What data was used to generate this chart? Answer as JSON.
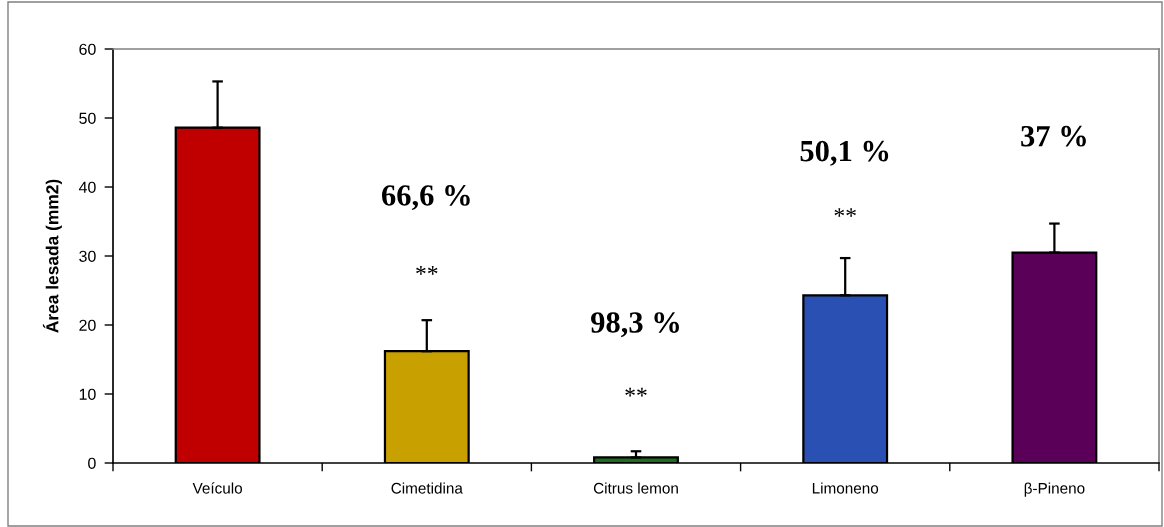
{
  "chart_data": {
    "type": "bar",
    "ylabel": "Área lesada (mm2)",
    "categories": [
      "Veículo",
      "Cimetidina",
      "Citrus lemon",
      "Limoneno",
      "β-Pineno"
    ],
    "values": [
      48.6,
      16.2,
      0.8,
      24.3,
      30.5
    ],
    "colors": [
      "#c00000",
      "#c8a000",
      "#1e6e1e",
      "#2a50b4",
      "#5a0058"
    ],
    "errors": [
      [
        48.6,
        55.3
      ],
      [
        16.2,
        20.7
      ],
      [
        0.8,
        1.7
      ],
      [
        24.3,
        29.7
      ],
      [
        30.5,
        34.7
      ]
    ],
    "ylim": [
      0,
      60
    ],
    "yticks": [
      0,
      10,
      20,
      30,
      40,
      50,
      60
    ],
    "grid": false,
    "annotations": [
      "66,6 %",
      "98,3 %",
      "50,1 %",
      "37 %",
      "**",
      "**",
      "**"
    ]
  }
}
